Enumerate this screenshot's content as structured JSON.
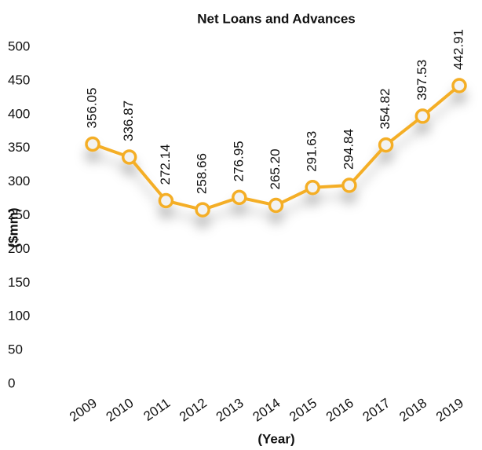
{
  "chart_data": {
    "type": "line",
    "title": "Net Loans and Advances",
    "x_label": "(Year)",
    "y_label": "($mm)",
    "categories": [
      "2009",
      "2010",
      "2011",
      "2012",
      "2013",
      "2014",
      "2015",
      "2016",
      "2017",
      "2018",
      "2019"
    ],
    "series": [
      {
        "name": "Net Loans and Advances",
        "color": "#f4ae25",
        "values": [
          356.05,
          336.87,
          272.14,
          258.66,
          276.95,
          265.2,
          291.63,
          294.84,
          354.82,
          397.53,
          442.91
        ],
        "value_labels": [
          "356.05",
          "336.87",
          "272.14",
          "258.66",
          "276.95",
          "265.20",
          "291.63",
          "294.84",
          "354.82",
          "397.53",
          "442.91"
        ]
      }
    ],
    "ylim": [
      0,
      500
    ],
    "yticks": [
      0,
      50,
      100,
      150,
      200,
      250,
      300,
      350,
      400,
      450,
      500
    ],
    "grid": false
  }
}
